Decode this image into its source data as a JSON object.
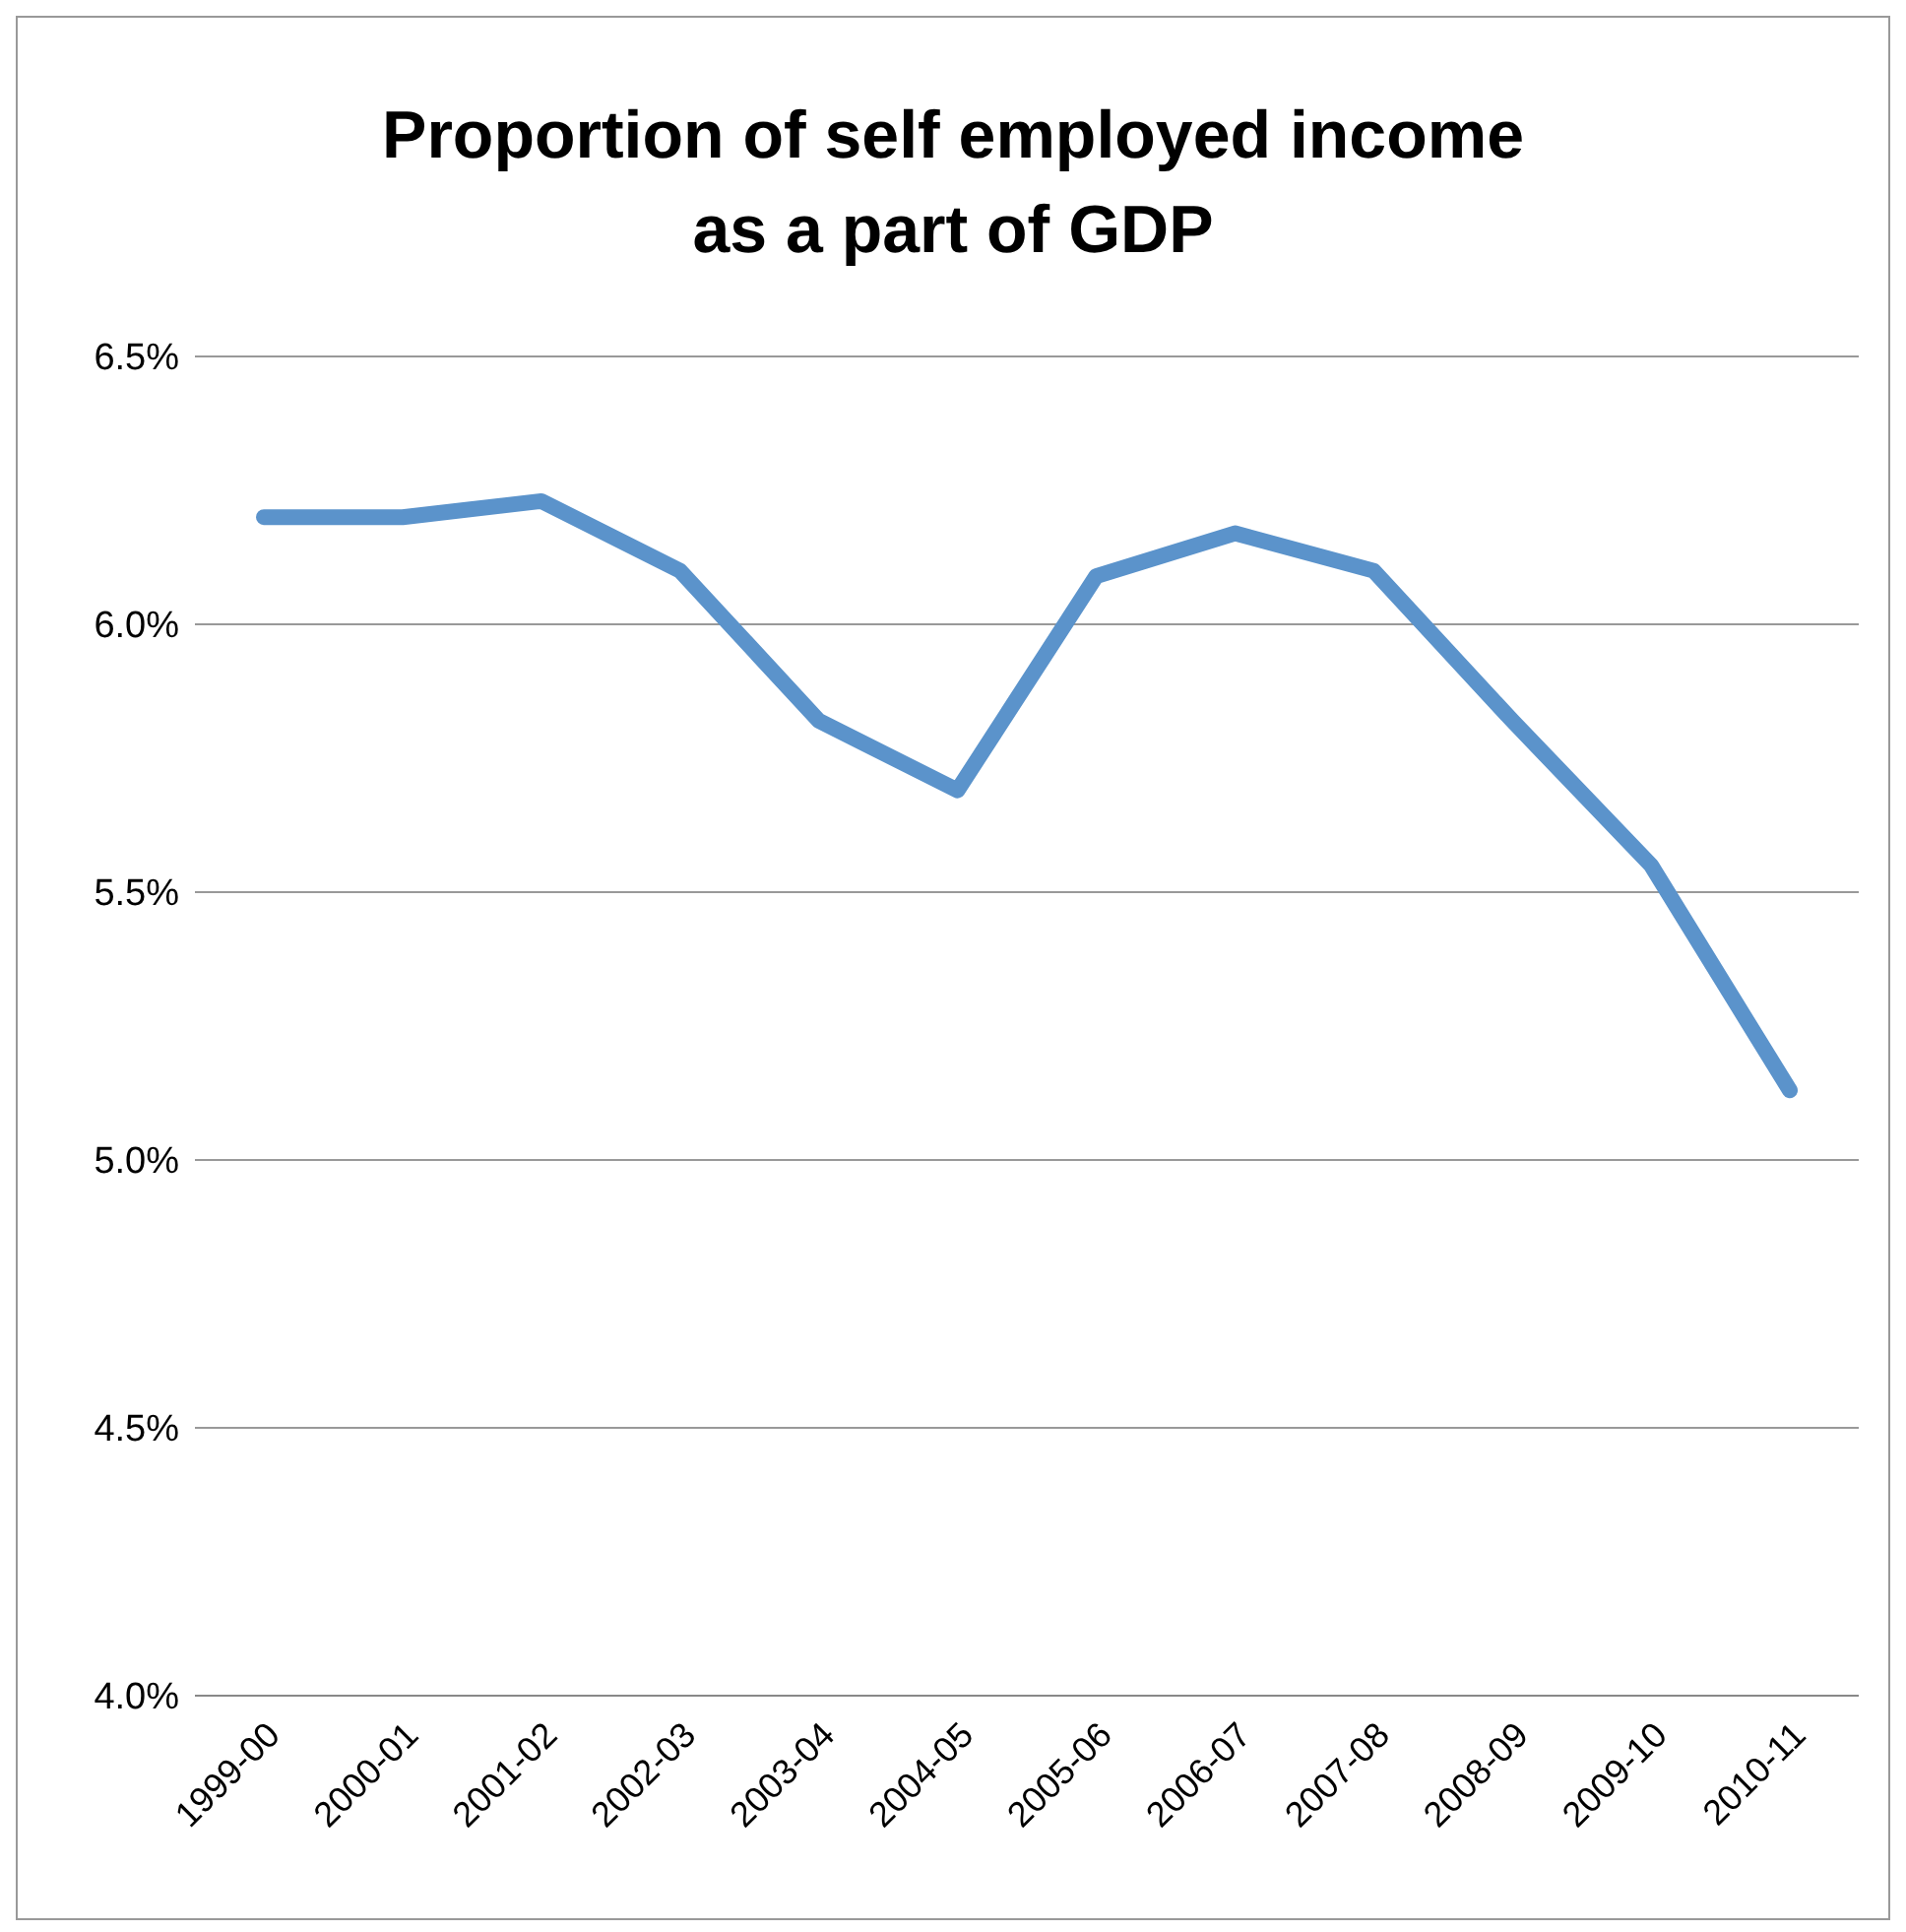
{
  "chart_data": {
    "type": "line",
    "title": "Proportion of self employed income as a part of GDP",
    "categories": [
      "1999-00",
      "2000-01",
      "2001-02",
      "2002-03",
      "2003-04",
      "2004-05",
      "2005-06",
      "2006-07",
      "2007-08",
      "2008-09",
      "2009-10",
      "2010-11"
    ],
    "series": [
      {
        "color": "#5b93cb",
        "values": [
          6.2,
          6.2,
          6.23,
          6.1,
          5.82,
          5.69,
          6.09,
          6.17,
          6.1,
          5.82,
          5.55,
          5.13
        ]
      }
    ],
    "ylim": [
      4.0,
      6.5
    ],
    "yticks": [
      {
        "value": 4.0,
        "label": "4.0%"
      },
      {
        "value": 4.5,
        "label": "4.5%"
      },
      {
        "value": 5.0,
        "label": "5.0%"
      },
      {
        "value": 5.5,
        "label": "5.5%"
      },
      {
        "value": 6.0,
        "label": "6.0%"
      },
      {
        "value": 6.5,
        "label": "6.5%"
      }
    ],
    "grid": "y",
    "legend": false,
    "marker": "none",
    "line_style": "solid"
  }
}
